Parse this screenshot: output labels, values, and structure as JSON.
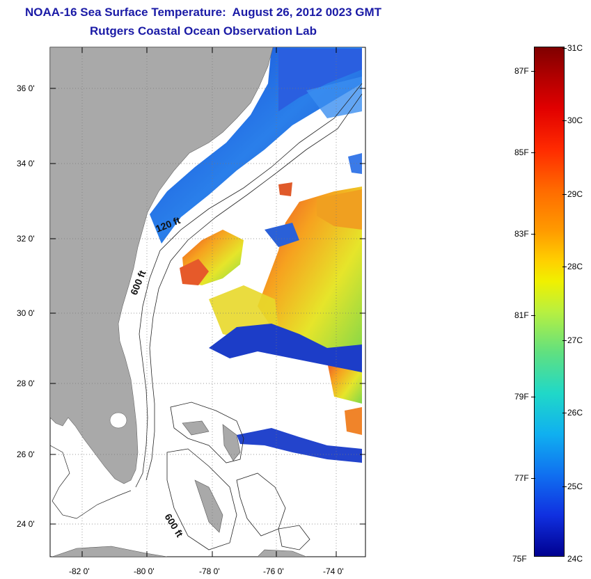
{
  "title": "NOAA-16 Sea Surface Temperature:  August 26, 2012 0023 GMT",
  "subtitle": "Rutgers Coastal Ocean Observation Lab",
  "axes": {
    "lat_labels": [
      "36 0'",
      "34 0'",
      "32 0'",
      "30 0'",
      "28 0'",
      "26 0'",
      "24 0'"
    ],
    "lon_labels": [
      "-82 0'",
      "-80 0'",
      "-78 0'",
      "-76 0'",
      "-74 0'"
    ]
  },
  "contour_labels": {
    "c120": "120 ft",
    "c600a": "600 ft",
    "c600b": "600 ft"
  },
  "colorbar": {
    "celsius": [
      "31C",
      "30C",
      "29C",
      "28C",
      "27C",
      "26C",
      "25C",
      "24C"
    ],
    "fahrenheit": [
      "87F",
      "85F",
      "83F",
      "81F",
      "79F",
      "77F",
      "75F"
    ]
  },
  "colors": {
    "land": "#a9a9a9",
    "title": "#1a1aa6"
  }
}
